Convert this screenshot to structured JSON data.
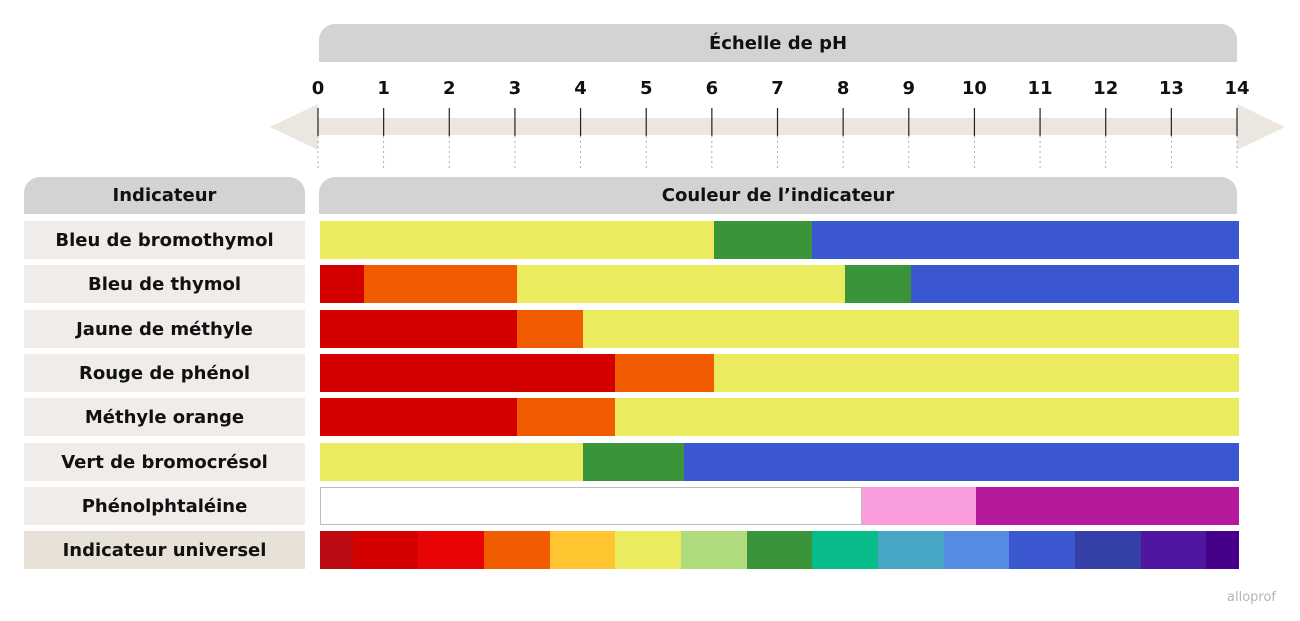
{
  "scale_title": "Échelle de pH",
  "ticks": [
    "0",
    "1",
    "2",
    "3",
    "4",
    "5",
    "6",
    "7",
    "8",
    "9",
    "10",
    "11",
    "12",
    "13",
    "14"
  ],
  "indicator_header": "Indicateur",
  "color_header": "Couleur de l’indicateur",
  "colors": {
    "red": "#d40000",
    "orange": "#f25c00",
    "yellow": "#eaeb5f",
    "green": "#3a943a",
    "blue": "#3a57cf",
    "white": "#ffffff",
    "pink": "#f99ddc",
    "magenta": "#b6189b",
    "axis_bar": "#ebe6e0",
    "header_gray": "#d3d3d3"
  },
  "indicators": [
    {
      "name": "Bleu de bromothymol",
      "segments": [
        {
          "from": 0,
          "to": 6.0,
          "color": "#eaeb5f"
        },
        {
          "from": 6.0,
          "to": 7.5,
          "color": "#3a943a"
        },
        {
          "from": 7.5,
          "to": 14,
          "color": "#3a57cf"
        }
      ]
    },
    {
      "name": "Bleu de thymol",
      "segments": [
        {
          "from": 0,
          "to": 0.67,
          "color": "#d40000"
        },
        {
          "from": 0.67,
          "to": 3.0,
          "color": "#f25c00"
        },
        {
          "from": 3.0,
          "to": 8.0,
          "color": "#eaeb5f"
        },
        {
          "from": 8.0,
          "to": 9.0,
          "color": "#3a943a"
        },
        {
          "from": 9.0,
          "to": 14,
          "color": "#3a57cf"
        }
      ]
    },
    {
      "name": "Jaune de méthyle",
      "segments": [
        {
          "from": 0,
          "to": 3.0,
          "color": "#d40000"
        },
        {
          "from": 3.0,
          "to": 4.0,
          "color": "#f25c00"
        },
        {
          "from": 4.0,
          "to": 14,
          "color": "#eaeb5f"
        }
      ]
    },
    {
      "name": "Rouge de phénol",
      "segments": [
        {
          "from": 0,
          "to": 4.5,
          "color": "#d40000"
        },
        {
          "from": 4.5,
          "to": 6.0,
          "color": "#f25c00"
        },
        {
          "from": 6.0,
          "to": 14,
          "color": "#eaeb5f"
        }
      ]
    },
    {
      "name": "Méthyle orange",
      "segments": [
        {
          "from": 0,
          "to": 3.0,
          "color": "#d40000"
        },
        {
          "from": 3.0,
          "to": 4.5,
          "color": "#f25c00"
        },
        {
          "from": 4.5,
          "to": 14,
          "color": "#eaeb5f"
        }
      ]
    },
    {
      "name": "Vert de bromocrésol",
      "segments": [
        {
          "from": 0,
          "to": 4.0,
          "color": "#eaeb5f"
        },
        {
          "from": 4.0,
          "to": 5.55,
          "color": "#3a943a"
        },
        {
          "from": 5.55,
          "to": 14,
          "color": "#3a57cf"
        }
      ]
    },
    {
      "name": "Phénolphtaléine",
      "segments": [
        {
          "from": 0,
          "to": 8.25,
          "color": "#ffffff"
        },
        {
          "from": 8.25,
          "to": 10.0,
          "color": "#f99ddc"
        },
        {
          "from": 10.0,
          "to": 14,
          "color": "#b6189b"
        }
      ]
    },
    {
      "name": "Indicateur universel",
      "segments": [
        {
          "from": 0,
          "to": 0.5,
          "color": "#bb0a14"
        },
        {
          "from": 0.5,
          "to": 1.5,
          "color": "#d40000"
        },
        {
          "from": 1.5,
          "to": 2.5,
          "color": "#e80404"
        },
        {
          "from": 2.5,
          "to": 3.5,
          "color": "#f25c00"
        },
        {
          "from": 3.5,
          "to": 4.5,
          "color": "#ffc631"
        },
        {
          "from": 4.5,
          "to": 5.5,
          "color": "#eaeb5f"
        },
        {
          "from": 5.5,
          "to": 6.5,
          "color": "#b1dc7d"
        },
        {
          "from": 6.5,
          "to": 7.5,
          "color": "#3a943a"
        },
        {
          "from": 7.5,
          "to": 8.5,
          "color": "#08bb8a"
        },
        {
          "from": 8.5,
          "to": 9.5,
          "color": "#47a6c3"
        },
        {
          "from": 9.5,
          "to": 10.5,
          "color": "#568be4"
        },
        {
          "from": 10.5,
          "to": 11.5,
          "color": "#3a57cf"
        },
        {
          "from": 11.5,
          "to": 12.5,
          "color": "#3440a8"
        },
        {
          "from": 12.5,
          "to": 13.5,
          "color": "#5015a1"
        },
        {
          "from": 13.5,
          "to": 14,
          "color": "#46008a"
        }
      ]
    }
  ],
  "watermark": "alloprof"
}
